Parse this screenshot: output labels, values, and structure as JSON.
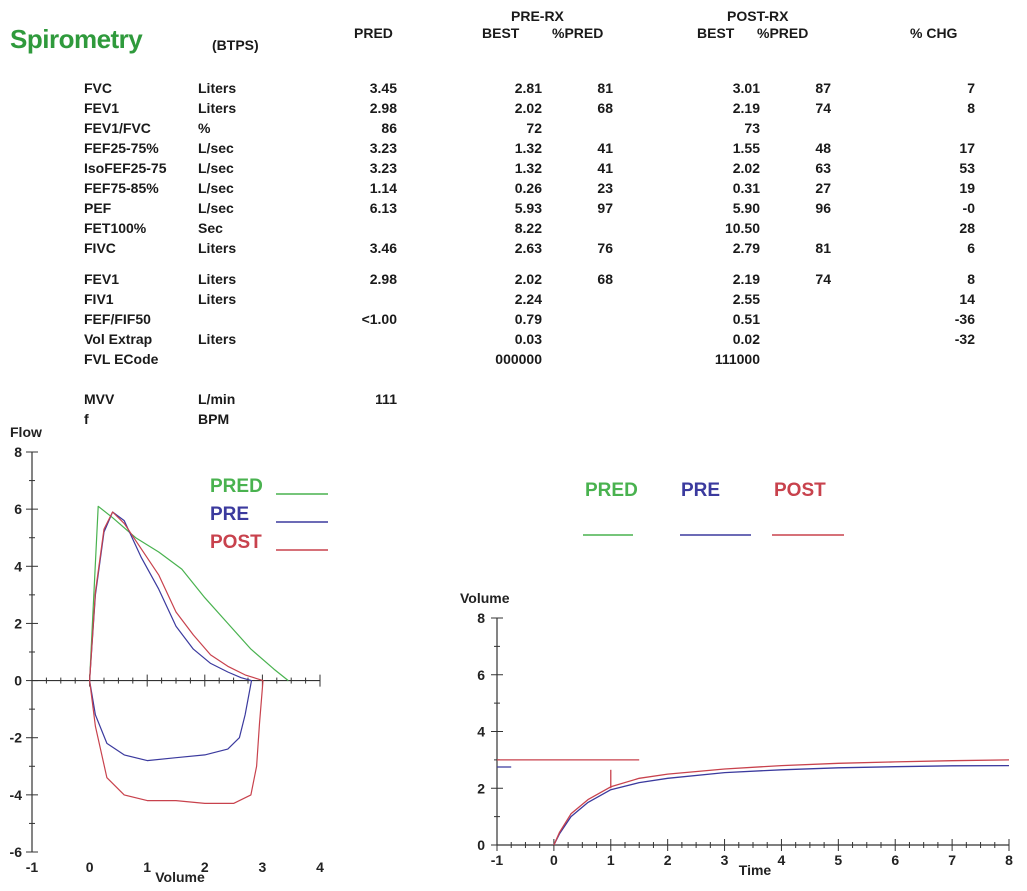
{
  "header": {
    "title": "Spirometry",
    "units_note": "(BTPS)",
    "col_pred": "PRED",
    "pre_group": "PRE-RX",
    "pre_best": "BEST",
    "pre_pct": "%PRED",
    "post_group": "POST-RX",
    "post_best": "BEST",
    "post_pct": "%PRED",
    "col_chg": "% CHG"
  },
  "rows": [
    {
      "name": "FVC",
      "unit": "Liters",
      "pred": "3.45",
      "pre_best": "2.81",
      "pre_pct": "81",
      "post_best": "3.01",
      "post_pct": "87",
      "chg": "7"
    },
    {
      "name": "FEV1",
      "unit": "Liters",
      "pred": "2.98",
      "pre_best": "2.02",
      "pre_pct": "68",
      "post_best": "2.19",
      "post_pct": "74",
      "chg": "8"
    },
    {
      "name": "FEV1/FVC",
      "unit": "%",
      "pred": "86",
      "pre_best": "72",
      "pre_pct": "",
      "post_best": "73",
      "post_pct": "",
      "chg": ""
    },
    {
      "name": "FEF25-75%",
      "unit": "L/sec",
      "pred": "3.23",
      "pre_best": "1.32",
      "pre_pct": "41",
      "post_best": "1.55",
      "post_pct": "48",
      "chg": "17"
    },
    {
      "name": "IsoFEF25-75",
      "unit": "L/sec",
      "pred": "3.23",
      "pre_best": "1.32",
      "pre_pct": "41",
      "post_best": "2.02",
      "post_pct": "63",
      "chg": "53"
    },
    {
      "name": "FEF75-85%",
      "unit": "L/sec",
      "pred": "1.14",
      "pre_best": "0.26",
      "pre_pct": "23",
      "post_best": "0.31",
      "post_pct": "27",
      "chg": "19"
    },
    {
      "name": "PEF",
      "unit": "L/sec",
      "pred": "6.13",
      "pre_best": "5.93",
      "pre_pct": "97",
      "post_best": "5.90",
      "post_pct": "96",
      "chg": "-0"
    },
    {
      "name": "FET100%",
      "unit": "Sec",
      "pred": "",
      "pre_best": "8.22",
      "pre_pct": "",
      "post_best": "10.50",
      "post_pct": "",
      "chg": "28"
    },
    {
      "name": "FIVC",
      "unit": "Liters",
      "pred": "3.46",
      "pre_best": "2.63",
      "pre_pct": "76",
      "post_best": "2.79",
      "post_pct": "81",
      "chg": "6"
    },
    {
      "name": "FEV1",
      "unit": "Liters",
      "pred": "2.98",
      "pre_best": "2.02",
      "pre_pct": "68",
      "post_best": "2.19",
      "post_pct": "74",
      "chg": "8"
    },
    {
      "name": "FIV1",
      "unit": "Liters",
      "pred": "",
      "pre_best": "2.24",
      "pre_pct": "",
      "post_best": "2.55",
      "post_pct": "",
      "chg": "14"
    },
    {
      "name": "FEF/FIF50",
      "unit": "",
      "pred": "<1.00",
      "pre_best": "0.79",
      "pre_pct": "",
      "post_best": "0.51",
      "post_pct": "",
      "chg": "-36"
    },
    {
      "name": "Vol Extrap",
      "unit": "Liters",
      "pred": "",
      "pre_best": "0.03",
      "pre_pct": "",
      "post_best": "0.02",
      "post_pct": "",
      "chg": "-32"
    },
    {
      "name": "FVL ECode",
      "unit": "",
      "pred": "",
      "pre_best": "000000",
      "pre_pct": "",
      "post_best": "111000",
      "post_pct": "",
      "chg": ""
    },
    {
      "name": "MVV",
      "unit": "L/min",
      "pred": "111",
      "pre_best": "",
      "pre_pct": "",
      "post_best": "",
      "post_pct": "",
      "chg": ""
    },
    {
      "name": "f",
      "unit": "BPM",
      "pred": "",
      "pre_best": "",
      "pre_pct": "",
      "post_best": "",
      "post_pct": "",
      "chg": ""
    }
  ],
  "colors": {
    "pred": "#49b24f",
    "pre": "#3b3a9e",
    "post": "#c8424d",
    "title": "#2f9a3c"
  },
  "legend": {
    "pred": "PRED",
    "pre": "PRE",
    "post": "POST"
  },
  "chart_data": [
    {
      "type": "line",
      "ylabel": "Flow",
      "xlabel": "Volume",
      "xlim": [
        -1,
        4
      ],
      "ylim": [
        -6,
        8
      ],
      "xticks": [
        -1,
        0,
        1,
        2,
        3,
        4
      ],
      "yticks": [
        -6,
        -4,
        -2,
        0,
        2,
        4,
        6,
        8
      ],
      "legend_position": "top-right",
      "series": [
        {
          "name": "PRED",
          "x": [
            0,
            0.15,
            0.4,
            0.8,
            1.2,
            1.6,
            2.0,
            2.4,
            2.8,
            3.2,
            3.45
          ],
          "y": [
            0,
            6.1,
            5.7,
            5.0,
            4.5,
            3.9,
            2.9,
            2.0,
            1.1,
            0.4,
            0
          ]
        },
        {
          "name": "PRE",
          "x": [
            0,
            0.1,
            0.25,
            0.4,
            0.6,
            0.9,
            1.2,
            1.5,
            1.8,
            2.1,
            2.4,
            2.63,
            2.81,
            2.7,
            2.6,
            2.4,
            2.0,
            1.5,
            1.0,
            0.6,
            0.3,
            0.1,
            0
          ],
          "y": [
            0,
            3.0,
            5.2,
            5.9,
            5.6,
            4.3,
            3.2,
            1.9,
            1.1,
            0.6,
            0.3,
            0.1,
            0,
            -1.2,
            -2.0,
            -2.4,
            -2.6,
            -2.7,
            -2.8,
            -2.6,
            -2.2,
            -1.2,
            0
          ]
        },
        {
          "name": "POST",
          "x": [
            0,
            0.1,
            0.25,
            0.4,
            0.6,
            0.9,
            1.2,
            1.5,
            1.8,
            2.1,
            2.4,
            2.7,
            3.01,
            2.95,
            2.9,
            2.8,
            2.5,
            2.0,
            1.5,
            1.0,
            0.6,
            0.3,
            0.1,
            0
          ],
          "y": [
            0,
            3.1,
            5.3,
            5.9,
            5.5,
            4.6,
            3.7,
            2.4,
            1.6,
            0.9,
            0.5,
            0.2,
            0,
            -1.5,
            -3.0,
            -4.0,
            -4.3,
            -4.3,
            -4.2,
            -4.2,
            -4.0,
            -3.4,
            -1.6,
            0
          ]
        }
      ]
    },
    {
      "type": "line",
      "ylabel": "Volume",
      "xlabel": "Time",
      "xlim": [
        -1,
        8
      ],
      "ylim": [
        0,
        8
      ],
      "xticks": [
        -1,
        0,
        1,
        2,
        3,
        4,
        5,
        6,
        7,
        8
      ],
      "yticks": [
        0,
        2,
        4,
        6,
        8
      ],
      "legend_position": "top",
      "series": [
        {
          "name": "PRE",
          "x": [
            -1,
            -0.75,
            0,
            0.1,
            0.3,
            0.6,
            1.0,
            1.5,
            2,
            3,
            4,
            5,
            6,
            7,
            8
          ],
          "y": [
            2.75,
            2.75,
            0,
            0.4,
            1.0,
            1.5,
            1.95,
            2.2,
            2.35,
            2.55,
            2.65,
            2.72,
            2.76,
            2.79,
            2.8
          ]
        },
        {
          "name": "POST",
          "x": [
            0,
            0.1,
            0.3,
            0.6,
            1.0,
            1.5,
            2,
            3,
            4,
            5,
            6,
            7,
            8
          ],
          "y": [
            0,
            0.45,
            1.1,
            1.6,
            2.05,
            2.35,
            2.5,
            2.68,
            2.8,
            2.88,
            2.93,
            2.97,
            3.0
          ]
        },
        {
          "name": "POST-extrap",
          "x": [
            -1,
            1.5
          ],
          "y": [
            3.0,
            3.0
          ]
        }
      ]
    }
  ]
}
